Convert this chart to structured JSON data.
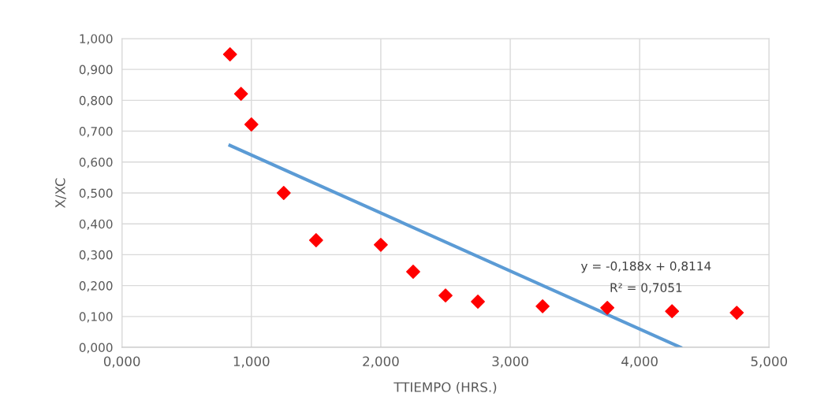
{
  "chart_data": {
    "type": "scatter",
    "xlabel": "TTIEMPO (HRS.)",
    "ylabel": "X/XC",
    "x": [
      0.835,
      0.92,
      1.0,
      1.25,
      1.5,
      2.0,
      2.25,
      2.5,
      2.75,
      3.25,
      3.75,
      4.25,
      4.75
    ],
    "series": [
      {
        "color": "#ff0000",
        "marker": "diamond",
        "values": [
          0.949,
          0.821,
          0.722,
          0.5,
          0.347,
          0.332,
          0.245,
          0.168,
          0.148,
          0.133,
          0.128,
          0.117,
          0.112
        ]
      },
      {
        "type": "line",
        "color": "#5b9bd5",
        "x": [
          0.835,
          4.316
        ],
        "values": [
          0.654,
          0.0
        ]
      }
    ],
    "xlim": [
      0,
      5
    ],
    "xticks": [
      {
        "value": 0,
        "label": "0,000"
      },
      {
        "value": 1,
        "label": "1,000"
      },
      {
        "value": 2,
        "label": "2,000"
      },
      {
        "value": 3,
        "label": "3,000"
      },
      {
        "value": 4,
        "label": "4,000"
      },
      {
        "value": 5,
        "label": "5,000"
      }
    ],
    "ylim": [
      0,
      1
    ],
    "yticks": [
      {
        "value": 0,
        "label": "0,000"
      },
      {
        "value": 0.1,
        "label": "0,100"
      },
      {
        "value": 0.2,
        "label": "0,200"
      },
      {
        "value": 0.3,
        "label": "0,300"
      },
      {
        "value": 0.4,
        "label": "0,400"
      },
      {
        "value": 0.5,
        "label": "0,500"
      },
      {
        "value": 0.6,
        "label": "0,600"
      },
      {
        "value": 0.7,
        "label": "0,700"
      },
      {
        "value": 0.8,
        "label": "0,800"
      },
      {
        "value": 0.9,
        "label": "0,900"
      },
      {
        "value": 1,
        "label": "1,000"
      }
    ],
    "grid": true,
    "legend": false,
    "annotations": [
      "y = -0,188x + 0,8114",
      "R² = 0,7051"
    ]
  }
}
